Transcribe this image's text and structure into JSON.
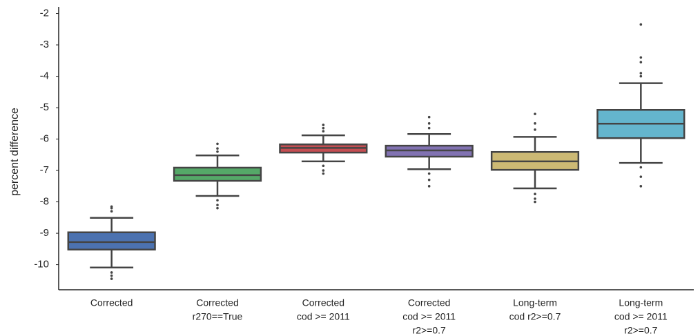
{
  "chart_data": {
    "type": "box",
    "y_label": "percent difference",
    "categories": [
      [
        "Corrected"
      ],
      [
        "Corrected",
        "r270==True"
      ],
      [
        "Corrected",
        "cod >= 2011"
      ],
      [
        "Corrected",
        "cod >= 2011",
        "r2>=0.7"
      ],
      [
        "Long-term",
        "cod r2>=0.7"
      ],
      [
        "Long-term",
        "cod >= 2011",
        "r2>=0.7"
      ]
    ],
    "colors": [
      "#4c72b0",
      "#55a868",
      "#c44e52",
      "#8172b2",
      "#ccb974",
      "#64b5cd"
    ],
    "boxes": [
      {
        "low": -10.09,
        "q1": -9.52,
        "median": -9.28,
        "q3": -8.97,
        "high": -8.51,
        "outliers": [
          -8.3,
          -8.2,
          -8.15,
          -10.25,
          -10.35,
          -10.45
        ]
      },
      {
        "low": -7.81,
        "q1": -7.33,
        "median": -7.15,
        "q3": -6.91,
        "high": -6.52,
        "outliers": [
          -6.15,
          -6.3,
          -6.4,
          -7.95,
          -8.1,
          -8.2
        ]
      },
      {
        "low": -6.71,
        "q1": -6.43,
        "median": -6.28,
        "q3": -6.17,
        "high": -5.88,
        "outliers": [
          -5.55,
          -5.65,
          -5.75,
          -6.85,
          -7.0,
          -7.1
        ]
      },
      {
        "low": -6.96,
        "q1": -6.56,
        "median": -6.36,
        "q3": -6.21,
        "high": -5.84,
        "outliers": [
          -5.3,
          -5.5,
          -5.65,
          -7.1,
          -7.3,
          -7.5
        ]
      },
      {
        "low": -7.57,
        "q1": -6.98,
        "median": -6.71,
        "q3": -6.41,
        "high": -5.93,
        "outliers": [
          -5.2,
          -5.5,
          -5.7,
          -7.75,
          -7.9,
          -8.0
        ]
      },
      {
        "low": -6.76,
        "q1": -5.97,
        "median": -5.51,
        "q3": -5.07,
        "high": -4.22,
        "outliers": [
          -2.35,
          -3.4,
          -3.55,
          -3.9,
          -4.0,
          -6.9,
          -7.2,
          -7.5
        ]
      }
    ],
    "ylim": [
      -10.8,
      -1.9
    ],
    "yticks": [
      -10,
      -9,
      -8,
      -7,
      -6,
      -5,
      -4,
      -3,
      -2
    ]
  }
}
